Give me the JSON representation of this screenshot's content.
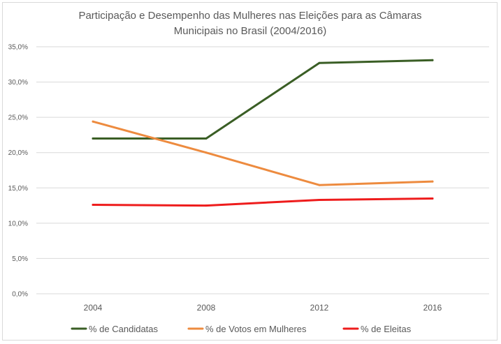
{
  "chart_data": {
    "type": "line",
    "title_line1": "Participação e Desempenho das Mulheres nas Eleições para as Câmaras",
    "title_line2": "Municipais no Brasil (2004/2016)",
    "x": [
      "2004",
      "2008",
      "2012",
      "2016"
    ],
    "ylim": [
      0,
      35
    ],
    "yticks": [
      "0,0%",
      "5,0%",
      "10,0%",
      "15,0%",
      "20,0%",
      "25,0%",
      "30,0%",
      "35,0%"
    ],
    "grid": true,
    "legend_position": "bottom",
    "series": [
      {
        "name": "% de Candidatas",
        "color": "#3a5e25",
        "values": [
          22.0,
          22.0,
          32.7,
          33.1
        ]
      },
      {
        "name": "% de Votos em Mulheres",
        "color": "#ed8b3f",
        "values": [
          24.4,
          20.0,
          15.4,
          15.9
        ]
      },
      {
        "name": "% de Eleitas",
        "color": "#ee1c1c",
        "values": [
          12.6,
          12.5,
          13.3,
          13.5
        ]
      }
    ]
  }
}
